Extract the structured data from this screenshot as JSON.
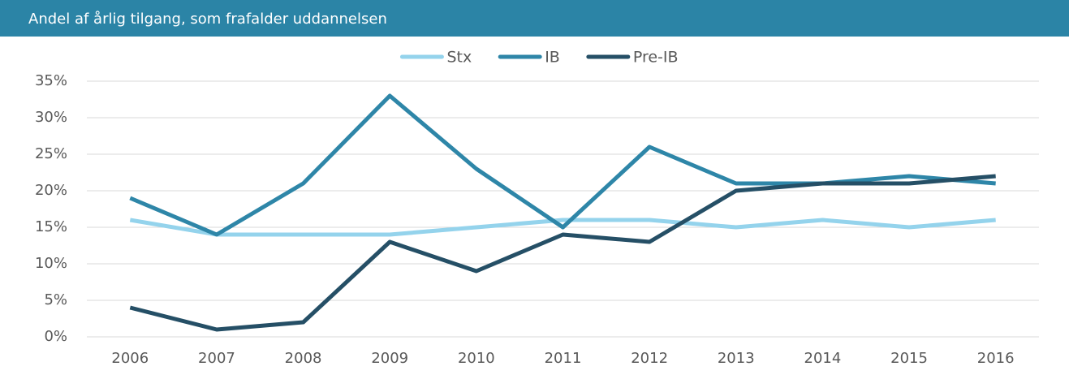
{
  "chart_data": {
    "type": "line",
    "title": "Andel af årlig tilgang, som frafalder uddannelsen",
    "categories": [
      "2006",
      "2007",
      "2008",
      "2009",
      "2010",
      "2011",
      "2012",
      "2013",
      "2014",
      "2015",
      "2016"
    ],
    "series": [
      {
        "name": "Stx",
        "color": "#94d3ec",
        "values": [
          16,
          14,
          14,
          14,
          15,
          16,
          16,
          15,
          16,
          15,
          16
        ]
      },
      {
        "name": "IB",
        "color": "#2e86a8",
        "values": [
          19,
          14,
          21,
          33,
          23,
          15,
          26,
          21,
          21,
          22,
          21
        ]
      },
      {
        "name": "Pre-IB",
        "color": "#254f66",
        "values": [
          4,
          1,
          2,
          13,
          9,
          14,
          13,
          20,
          21,
          21,
          22
        ]
      }
    ],
    "ylim": [
      0,
      35
    ],
    "yticks": [
      {
        "value": 0,
        "label": "0%"
      },
      {
        "value": 5,
        "label": "5%"
      },
      {
        "value": 10,
        "label": "10%"
      },
      {
        "value": 15,
        "label": "15%"
      },
      {
        "value": 20,
        "label": "20%"
      },
      {
        "value": 25,
        "label": "25%"
      },
      {
        "value": 30,
        "label": "30%"
      },
      {
        "value": 35,
        "label": "35%"
      }
    ],
    "grid": true,
    "legend": "top"
  }
}
